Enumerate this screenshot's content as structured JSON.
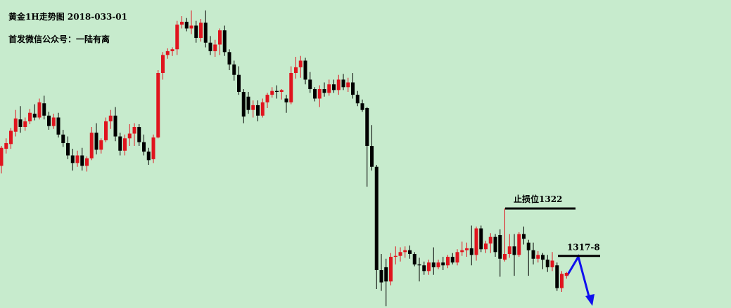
{
  "chart_data": {
    "type": "candlestick",
    "title": "黄金1H走势图 2018-033-01",
    "subtitle": "首发微信公众号：一陆有离",
    "ylim": [
      1311.5,
      1344
    ],
    "up_color": "#e0141e",
    "down_color": "#000000",
    "stop_line": {
      "label": "止损位1322",
      "value": 1322
    },
    "target_line": {
      "label": "1317-8",
      "value": 1317
    },
    "open": [
      1326.5,
      1328.3,
      1328.8,
      1330.1,
      1331.4,
      1330.6,
      1331.2,
      1332.0,
      1331.6,
      1333.1,
      1331.8,
      1330.7,
      1331.6,
      1329.8,
      1328.9,
      1327.6,
      1326.8,
      1327.6,
      1326.5,
      1327.3,
      1330.0,
      1328.2,
      1329.2,
      1331.2,
      1331.8,
      1329.6,
      1328.1,
      1329.4,
      1329.9,
      1330.6,
      1329.0,
      1328.0,
      1327.2,
      1329.5,
      1336.3,
      1338.2,
      1338.6,
      1338.8,
      1341.4,
      1341.7,
      1341.0,
      1341.3,
      1340.0,
      1341.6,
      1339.5,
      1338.6,
      1339.3,
      1340.8,
      1338.5,
      1337.2,
      1336.1,
      1334.3,
      1333.8,
      1332.4,
      1332.9,
      1331.8,
      1333.2,
      1334.0,
      1334.4,
      1334.3,
      1333.6,
      1333.2,
      1336.3,
      1336.9,
      1337.6,
      1335.6,
      1334.6,
      1333.6,
      1334.6,
      1334.2,
      1335.1,
      1334.5,
      1335.6,
      1334.8,
      1335.3,
      1334.0,
      1333.1,
      1332.6,
      1328.6,
      1326.4,
      1315.5,
      1315.8,
      1314.3,
      1316.9,
      1317.0,
      1317.4,
      1317.6,
      1317.2,
      1316.1,
      1316.0,
      1315.4,
      1316.3,
      1315.8,
      1316.3,
      1316.0,
      1316.9,
      1316.3,
      1317.4,
      1317.6,
      1317.8,
      1317.1,
      1319.9,
      1317.7,
      1318.3,
      1319.0,
      1319.2,
      1316.6,
      1317.2,
      1318.0,
      1317.1,
      1319.3,
      1318.4,
      1317.6,
      1316.7,
      1317.1,
      1316.6,
      1315.8,
      1316.0,
      1313.6,
      1314.9
    ],
    "high": [
      1328.6,
      1329.4,
      1330.5,
      1332.4,
      1332.8,
      1331.6,
      1332.5,
      1333.0,
      1333.6,
      1333.9,
      1332.2,
      1332.0,
      1332.1,
      1330.3,
      1329.6,
      1328.3,
      1328.1,
      1328.4,
      1327.5,
      1330.6,
      1331.0,
      1329.4,
      1331.6,
      1332.4,
      1332.7,
      1330.0,
      1329.8,
      1330.9,
      1331.0,
      1330.9,
      1329.8,
      1328.4,
      1329.8,
      1336.6,
      1338.5,
      1338.9,
      1339.0,
      1341.8,
      1342.3,
      1342.1,
      1342.9,
      1341.8,
      1342.0,
      1342.9,
      1340.2,
      1339.8,
      1341.0,
      1341.3,
      1338.8,
      1337.6,
      1337.0,
      1334.6,
      1334.3,
      1333.4,
      1333.4,
      1333.6,
      1334.2,
      1334.8,
      1335.0,
      1334.6,
      1334.0,
      1337.0,
      1338.0,
      1338.1,
      1337.9,
      1336.4,
      1334.8,
      1335.0,
      1335.3,
      1335.6,
      1335.6,
      1336.1,
      1336.2,
      1335.8,
      1336.3,
      1334.4,
      1333.5,
      1332.7,
      1330.8,
      1326.6,
      1317.2,
      1316.7,
      1317.3,
      1318.0,
      1317.9,
      1318.0,
      1318.1,
      1317.4,
      1316.8,
      1316.4,
      1316.6,
      1317.9,
      1316.6,
      1316.9,
      1317.1,
      1317.3,
      1317.7,
      1318.5,
      1318.4,
      1320.2,
      1320.1,
      1320.2,
      1318.6,
      1319.4,
      1319.3,
      1319.8,
      1322.0,
      1319.3,
      1319.3,
      1319.5,
      1320.1,
      1318.7,
      1318.4,
      1317.5,
      1317.3,
      1317.1,
      1317.4,
      1316.3,
      1315.4,
      1315.3
    ],
    "low": [
      1325.7,
      1327.8,
      1328.3,
      1329.6,
      1330.0,
      1330.2,
      1330.9,
      1331.3,
      1331.4,
      1331.4,
      1330.3,
      1330.4,
      1329.5,
      1328.5,
      1327.2,
      1326.0,
      1326.4,
      1326.0,
      1325.9,
      1327.1,
      1327.7,
      1327.8,
      1329.0,
      1330.4,
      1329.1,
      1327.6,
      1327.6,
      1328.6,
      1328.6,
      1328.6,
      1327.6,
      1326.6,
      1326.8,
      1329.4,
      1335.6,
      1337.8,
      1338.1,
      1338.2,
      1341.0,
      1340.7,
      1340.4,
      1339.5,
      1339.6,
      1339.0,
      1338.2,
      1338.0,
      1338.2,
      1338.1,
      1336.6,
      1335.5,
      1334.0,
      1331.0,
      1332.0,
      1331.6,
      1331.2,
      1331.6,
      1332.6,
      1333.7,
      1333.6,
      1333.5,
      1332.1,
      1333.0,
      1335.7,
      1335.8,
      1335.1,
      1334.2,
      1333.3,
      1332.7,
      1333.8,
      1333.9,
      1334.2,
      1334.0,
      1334.5,
      1334.3,
      1333.6,
      1332.8,
      1332.2,
      1324.3,
      1326.0,
      1313.5,
      1313.3,
      1311.7,
      1313.9,
      1316.1,
      1316.4,
      1316.8,
      1316.7,
      1315.9,
      1314.3,
      1315.0,
      1315.0,
      1315.0,
      1315.6,
      1315.5,
      1315.7,
      1316.1,
      1316.0,
      1317.0,
      1316.9,
      1316.0,
      1316.5,
      1317.4,
      1317.3,
      1317.3,
      1316.9,
      1314.8,
      1316.4,
      1316.8,
      1314.9,
      1316.9,
      1318.2,
      1314.9,
      1316.1,
      1316.3,
      1315.6,
      1315.3,
      1315.4,
      1313.3,
      1313.2,
      1314.6
    ],
    "close": [
      1328.4,
      1328.9,
      1330.2,
      1331.5,
      1330.6,
      1331.2,
      1332.1,
      1331.6,
      1333.2,
      1331.8,
      1330.7,
      1331.6,
      1329.8,
      1328.9,
      1327.6,
      1326.8,
      1327.6,
      1326.5,
      1327.3,
      1330.0,
      1328.2,
      1329.2,
      1331.2,
      1331.8,
      1329.6,
      1328.1,
      1329.4,
      1329.9,
      1330.6,
      1329.0,
      1328.0,
      1327.1,
      1329.5,
      1336.3,
      1338.2,
      1338.6,
      1338.8,
      1341.4,
      1341.7,
      1341.0,
      1341.3,
      1340.0,
      1341.6,
      1339.5,
      1338.6,
      1339.3,
      1340.8,
      1338.5,
      1337.2,
      1336.1,
      1334.3,
      1331.7,
      1332.4,
      1332.9,
      1331.8,
      1333.2,
      1334.0,
      1334.4,
      1334.3,
      1334.5,
      1333.2,
      1336.3,
      1336.9,
      1337.6,
      1335.6,
      1334.6,
      1333.6,
      1334.6,
      1334.2,
      1335.1,
      1334.5,
      1335.6,
      1334.8,
      1335.3,
      1334.0,
      1333.1,
      1332.4,
      1328.6,
      1326.4,
      1315.5,
      1314.2,
      1314.3,
      1316.9,
      1317.0,
      1317.4,
      1317.6,
      1317.2,
      1316.1,
      1316.0,
      1315.4,
      1316.3,
      1315.8,
      1316.3,
      1316.0,
      1316.9,
      1316.3,
      1317.4,
      1317.6,
      1317.8,
      1317.1,
      1319.9,
      1317.7,
      1318.3,
      1319.0,
      1317.4,
      1316.7,
      1317.2,
      1318.0,
      1317.1,
      1319.3,
      1318.8,
      1317.6,
      1316.7,
      1317.1,
      1316.6,
      1315.8,
      1316.5,
      1313.6,
      1315.1,
      1315.2
    ]
  }
}
